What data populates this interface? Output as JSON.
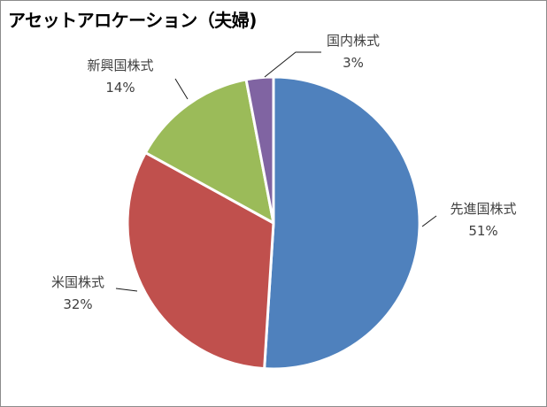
{
  "chart_data": {
    "type": "pie",
    "title": "アセットアロケーション（夫婦)",
    "slices": [
      {
        "category": "先進国株式",
        "value": 51,
        "label": "51%",
        "color": "#4f81bd"
      },
      {
        "category": "米国株式",
        "value": 32,
        "label": "32%",
        "color": "#c0504d"
      },
      {
        "category": "新興国株式",
        "value": 14,
        "label": "14%",
        "color": "#9bbb59"
      },
      {
        "category": "国内株式",
        "value": 3,
        "label": "3%",
        "color": "#8064a2"
      }
    ],
    "legend": "none"
  }
}
